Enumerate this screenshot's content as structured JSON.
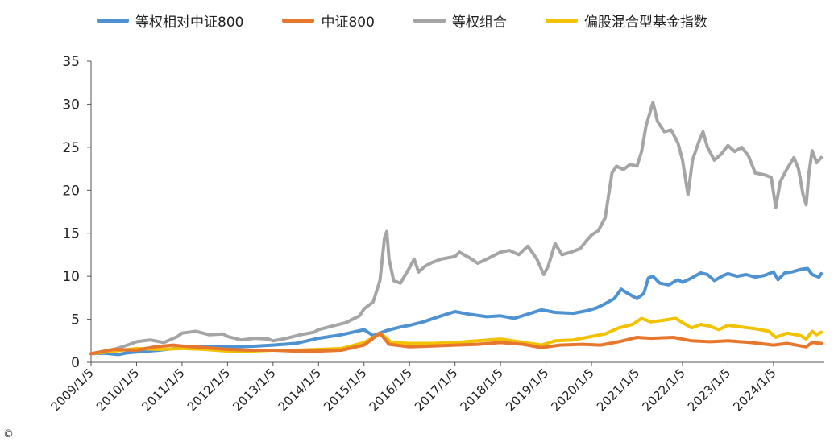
{
  "copyright": "©",
  "chart_data": {
    "type": "line",
    "title": "",
    "xlabel": "",
    "ylabel": "",
    "ylim": [
      0,
      35
    ],
    "yticks": [
      0,
      5,
      10,
      15,
      20,
      25,
      30,
      35
    ],
    "xlim": [
      2009.0,
      2025.1
    ],
    "xticks": [
      {
        "label": "2009/1/5",
        "x": 2009.0
      },
      {
        "label": "2010/1/5",
        "x": 2010.0
      },
      {
        "label": "2011/1/5",
        "x": 2011.0
      },
      {
        "label": "2012/1/5",
        "x": 2012.0
      },
      {
        "label": "2013/1/5",
        "x": 2013.0
      },
      {
        "label": "2014/1/5",
        "x": 2014.0
      },
      {
        "label": "2015/1/5",
        "x": 2015.0
      },
      {
        "label": "2016/1/5",
        "x": 2016.0
      },
      {
        "label": "2017/1/5",
        "x": 2017.0
      },
      {
        "label": "2018/1/5",
        "x": 2018.0
      },
      {
        "label": "2019/1/5",
        "x": 2019.0
      },
      {
        "label": "2020/1/5",
        "x": 2020.0
      },
      {
        "label": "2021/1/5",
        "x": 2021.0
      },
      {
        "label": "2022/1/5",
        "x": 2022.0
      },
      {
        "label": "2023/1/5",
        "x": 2023.0
      },
      {
        "label": "2024/1/5",
        "x": 2024.0
      }
    ],
    "legend_position": "top",
    "series": [
      {
        "name": "等权组合",
        "color": "#a5a5a5",
        "points": [
          [
            2009.0,
            1.0
          ],
          [
            2009.5,
            1.5
          ],
          [
            2009.8,
            2.0
          ],
          [
            2010.0,
            2.4
          ],
          [
            2010.3,
            2.6
          ],
          [
            2010.6,
            2.3
          ],
          [
            2010.9,
            3.0
          ],
          [
            2011.0,
            3.4
          ],
          [
            2011.3,
            3.6
          ],
          [
            2011.6,
            3.2
          ],
          [
            2011.9,
            3.3
          ],
          [
            2012.0,
            3.0
          ],
          [
            2012.3,
            2.6
          ],
          [
            2012.6,
            2.8
          ],
          [
            2012.9,
            2.7
          ],
          [
            2013.0,
            2.5
          ],
          [
            2013.3,
            2.8
          ],
          [
            2013.6,
            3.2
          ],
          [
            2013.9,
            3.5
          ],
          [
            2014.0,
            3.8
          ],
          [
            2014.3,
            4.2
          ],
          [
            2014.6,
            4.6
          ],
          [
            2014.9,
            5.4
          ],
          [
            2015.0,
            6.2
          ],
          [
            2015.2,
            7.0
          ],
          [
            2015.35,
            9.5
          ],
          [
            2015.45,
            14.5
          ],
          [
            2015.5,
            15.2
          ],
          [
            2015.55,
            12.0
          ],
          [
            2015.65,
            9.5
          ],
          [
            2015.8,
            9.2
          ],
          [
            2016.0,
            11.0
          ],
          [
            2016.1,
            12.0
          ],
          [
            2016.2,
            10.5
          ],
          [
            2016.35,
            11.2
          ],
          [
            2016.5,
            11.6
          ],
          [
            2016.7,
            12.0
          ],
          [
            2017.0,
            12.3
          ],
          [
            2017.1,
            12.8
          ],
          [
            2017.3,
            12.2
          ],
          [
            2017.5,
            11.5
          ],
          [
            2017.7,
            12.0
          ],
          [
            2018.0,
            12.8
          ],
          [
            2018.2,
            13.0
          ],
          [
            2018.4,
            12.5
          ],
          [
            2018.6,
            13.5
          ],
          [
            2018.8,
            12.0
          ],
          [
            2018.95,
            10.2
          ],
          [
            2019.05,
            11.2
          ],
          [
            2019.2,
            13.8
          ],
          [
            2019.35,
            12.5
          ],
          [
            2019.55,
            12.8
          ],
          [
            2019.75,
            13.2
          ],
          [
            2019.9,
            14.2
          ],
          [
            2020.0,
            14.8
          ],
          [
            2020.15,
            15.3
          ],
          [
            2020.3,
            16.8
          ],
          [
            2020.45,
            22.0
          ],
          [
            2020.55,
            22.8
          ],
          [
            2020.7,
            22.4
          ],
          [
            2020.85,
            23.0
          ],
          [
            2021.0,
            22.8
          ],
          [
            2021.1,
            24.5
          ],
          [
            2021.2,
            27.5
          ],
          [
            2021.35,
            30.2
          ],
          [
            2021.45,
            28.0
          ],
          [
            2021.6,
            26.8
          ],
          [
            2021.75,
            27.0
          ],
          [
            2021.9,
            25.5
          ],
          [
            2022.0,
            23.5
          ],
          [
            2022.12,
            19.5
          ],
          [
            2022.22,
            23.5
          ],
          [
            2022.35,
            25.5
          ],
          [
            2022.45,
            26.8
          ],
          [
            2022.55,
            25.0
          ],
          [
            2022.7,
            23.5
          ],
          [
            2022.85,
            24.2
          ],
          [
            2023.0,
            25.2
          ],
          [
            2023.15,
            24.5
          ],
          [
            2023.3,
            25.0
          ],
          [
            2023.45,
            24.0
          ],
          [
            2023.6,
            22.0
          ],
          [
            2023.8,
            21.8
          ],
          [
            2023.95,
            21.5
          ],
          [
            2024.05,
            18.0
          ],
          [
            2024.15,
            21.0
          ],
          [
            2024.3,
            22.5
          ],
          [
            2024.45,
            23.8
          ],
          [
            2024.55,
            22.5
          ],
          [
            2024.65,
            19.5
          ],
          [
            2024.72,
            18.3
          ],
          [
            2024.78,
            22.0
          ],
          [
            2024.85,
            24.6
          ],
          [
            2024.95,
            23.2
          ],
          [
            2025.05,
            23.8
          ]
        ]
      },
      {
        "name": "等权相对中证800",
        "color": "#4e92d1",
        "points": [
          [
            2009.0,
            1.0
          ],
          [
            2009.3,
            1.05
          ],
          [
            2009.6,
            0.9
          ],
          [
            2009.8,
            1.1
          ],
          [
            2010.0,
            1.2
          ],
          [
            2010.5,
            1.4
          ],
          [
            2011.0,
            1.7
          ],
          [
            2011.5,
            1.8
          ],
          [
            2012.0,
            1.8
          ],
          [
            2012.5,
            1.85
          ],
          [
            2013.0,
            2.0
          ],
          [
            2013.5,
            2.2
          ],
          [
            2014.0,
            2.8
          ],
          [
            2014.5,
            3.2
          ],
          [
            2015.0,
            3.8
          ],
          [
            2015.2,
            3.1
          ],
          [
            2015.5,
            3.7
          ],
          [
            2015.8,
            4.1
          ],
          [
            2016.0,
            4.3
          ],
          [
            2016.3,
            4.7
          ],
          [
            2016.7,
            5.4
          ],
          [
            2017.0,
            5.9
          ],
          [
            2017.3,
            5.6
          ],
          [
            2017.7,
            5.3
          ],
          [
            2018.0,
            5.4
          ],
          [
            2018.3,
            5.1
          ],
          [
            2018.6,
            5.6
          ],
          [
            2018.9,
            6.1
          ],
          [
            2019.2,
            5.8
          ],
          [
            2019.6,
            5.7
          ],
          [
            2019.9,
            6.0
          ],
          [
            2020.1,
            6.3
          ],
          [
            2020.3,
            6.8
          ],
          [
            2020.5,
            7.4
          ],
          [
            2020.65,
            8.5
          ],
          [
            2020.8,
            8.0
          ],
          [
            2021.0,
            7.4
          ],
          [
            2021.15,
            8.0
          ],
          [
            2021.25,
            9.8
          ],
          [
            2021.35,
            10.0
          ],
          [
            2021.5,
            9.2
          ],
          [
            2021.7,
            9.0
          ],
          [
            2021.9,
            9.6
          ],
          [
            2022.0,
            9.3
          ],
          [
            2022.2,
            9.8
          ],
          [
            2022.4,
            10.4
          ],
          [
            2022.55,
            10.2
          ],
          [
            2022.7,
            9.5
          ],
          [
            2022.9,
            10.1
          ],
          [
            2023.0,
            10.3
          ],
          [
            2023.2,
            10.0
          ],
          [
            2023.4,
            10.2
          ],
          [
            2023.6,
            9.9
          ],
          [
            2023.8,
            10.1
          ],
          [
            2024.0,
            10.5
          ],
          [
            2024.1,
            9.6
          ],
          [
            2024.25,
            10.4
          ],
          [
            2024.4,
            10.5
          ],
          [
            2024.6,
            10.8
          ],
          [
            2024.75,
            10.9
          ],
          [
            2024.85,
            10.2
          ],
          [
            2025.0,
            9.9
          ],
          [
            2025.05,
            10.3
          ]
        ]
      },
      {
        "name": "偏股混合型基金指数",
        "color": "#f2c200",
        "points": [
          [
            2009.0,
            1.0
          ],
          [
            2009.5,
            1.3
          ],
          [
            2010.0,
            1.6
          ],
          [
            2010.5,
            1.5
          ],
          [
            2011.0,
            1.6
          ],
          [
            2011.5,
            1.5
          ],
          [
            2012.0,
            1.3
          ],
          [
            2012.5,
            1.3
          ],
          [
            2013.0,
            1.4
          ],
          [
            2013.5,
            1.4
          ],
          [
            2014.0,
            1.5
          ],
          [
            2014.5,
            1.6
          ],
          [
            2015.0,
            2.3
          ],
          [
            2015.35,
            3.3
          ],
          [
            2015.45,
            3.0
          ],
          [
            2015.6,
            2.3
          ],
          [
            2016.0,
            2.2
          ],
          [
            2016.5,
            2.2
          ],
          [
            2017.0,
            2.3
          ],
          [
            2017.5,
            2.5
          ],
          [
            2018.0,
            2.7
          ],
          [
            2018.4,
            2.4
          ],
          [
            2018.9,
            2.0
          ],
          [
            2019.2,
            2.5
          ],
          [
            2019.6,
            2.6
          ],
          [
            2020.0,
            3.0
          ],
          [
            2020.3,
            3.3
          ],
          [
            2020.6,
            4.0
          ],
          [
            2020.9,
            4.4
          ],
          [
            2021.1,
            5.1
          ],
          [
            2021.3,
            4.7
          ],
          [
            2021.6,
            4.9
          ],
          [
            2021.85,
            5.1
          ],
          [
            2022.0,
            4.6
          ],
          [
            2022.2,
            4.0
          ],
          [
            2022.4,
            4.4
          ],
          [
            2022.6,
            4.2
          ],
          [
            2022.8,
            3.8
          ],
          [
            2023.0,
            4.3
          ],
          [
            2023.3,
            4.1
          ],
          [
            2023.6,
            3.9
          ],
          [
            2023.9,
            3.6
          ],
          [
            2024.05,
            2.9
          ],
          [
            2024.3,
            3.4
          ],
          [
            2024.6,
            3.1
          ],
          [
            2024.72,
            2.7
          ],
          [
            2024.85,
            3.6
          ],
          [
            2024.95,
            3.2
          ],
          [
            2025.05,
            3.5
          ]
        ]
      },
      {
        "name": "中证800",
        "color": "#e8772e",
        "points": [
          [
            2009.0,
            1.0
          ],
          [
            2009.5,
            1.5
          ],
          [
            2010.0,
            1.4
          ],
          [
            2010.4,
            1.8
          ],
          [
            2010.8,
            2.0
          ],
          [
            2011.0,
            1.9
          ],
          [
            2011.5,
            1.7
          ],
          [
            2012.0,
            1.5
          ],
          [
            2012.5,
            1.4
          ],
          [
            2013.0,
            1.4
          ],
          [
            2013.5,
            1.3
          ],
          [
            2014.0,
            1.3
          ],
          [
            2014.5,
            1.4
          ],
          [
            2015.0,
            2.0
          ],
          [
            2015.35,
            3.4
          ],
          [
            2015.55,
            2.1
          ],
          [
            2016.0,
            1.8
          ],
          [
            2016.5,
            1.9
          ],
          [
            2017.0,
            2.0
          ],
          [
            2017.5,
            2.1
          ],
          [
            2018.0,
            2.3
          ],
          [
            2018.5,
            2.1
          ],
          [
            2018.9,
            1.7
          ],
          [
            2019.3,
            2.0
          ],
          [
            2019.8,
            2.1
          ],
          [
            2020.2,
            2.0
          ],
          [
            2020.6,
            2.4
          ],
          [
            2021.0,
            2.9
          ],
          [
            2021.3,
            2.8
          ],
          [
            2021.8,
            2.9
          ],
          [
            2022.2,
            2.5
          ],
          [
            2022.6,
            2.4
          ],
          [
            2023.0,
            2.5
          ],
          [
            2023.5,
            2.3
          ],
          [
            2024.0,
            2.0
          ],
          [
            2024.3,
            2.2
          ],
          [
            2024.72,
            1.8
          ],
          [
            2024.85,
            2.3
          ],
          [
            2025.05,
            2.2
          ]
        ]
      }
    ],
    "legend": [
      {
        "name": "等权相对中证800",
        "color": "#4e92d1"
      },
      {
        "name": "中证800",
        "color": "#e8772e"
      },
      {
        "name": "等权组合",
        "color": "#a5a5a5"
      },
      {
        "name": "偏股混合型基金指数",
        "color": "#f2c200"
      }
    ]
  }
}
